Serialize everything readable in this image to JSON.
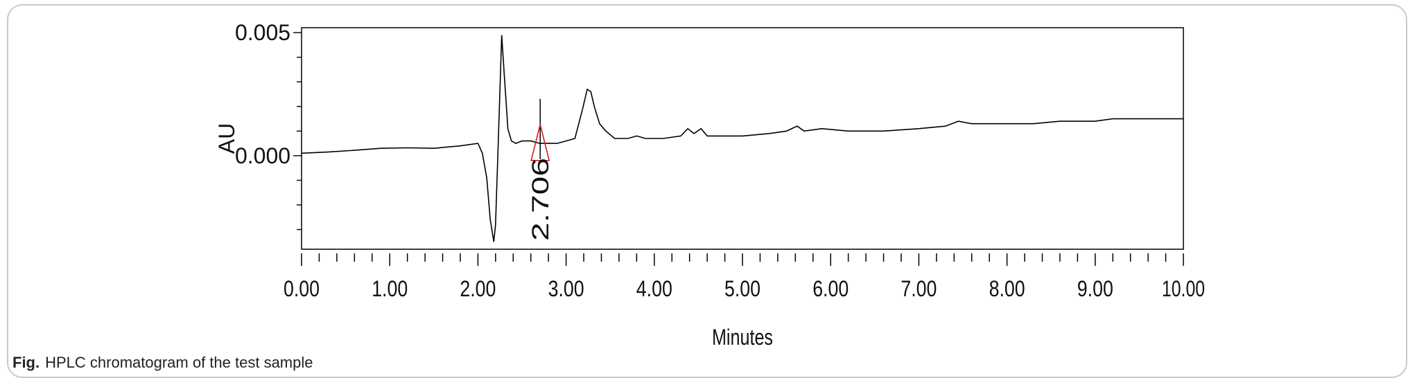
{
  "figure": {
    "caption_label": "Fig.",
    "caption_text": "HPLC chromatogram of the test sample"
  },
  "chart_data": {
    "type": "line",
    "title": "",
    "xlabel": "Minutes",
    "ylabel": "AU",
    "xlim": [
      0,
      10
    ],
    "ylim": [
      -0.0038,
      0.0052
    ],
    "x_ticks": [
      "0.00",
      "1.00",
      "2.00",
      "3.00",
      "4.00",
      "5.00",
      "6.00",
      "7.00",
      "8.00",
      "9.00",
      "10.00"
    ],
    "y_ticks": [
      "0.005",
      "0.000"
    ],
    "y_tick_values": [
      0.005,
      0.0
    ],
    "grid": false,
    "line_color": "#000000",
    "marker_color": "#d81b1b",
    "series": [
      {
        "x": [
          0.0,
          0.3,
          0.6,
          0.9,
          1.2,
          1.5,
          1.8,
          2.0,
          2.05,
          2.1,
          2.14,
          2.18,
          2.2,
          2.23,
          2.27,
          2.3,
          2.34,
          2.38,
          2.43,
          2.5,
          2.6,
          2.7,
          2.8,
          2.9,
          3.0,
          3.1,
          3.18,
          3.24,
          3.28,
          3.32,
          3.38,
          3.45,
          3.55,
          3.7,
          3.8,
          3.9,
          4.1,
          4.3,
          4.38,
          4.45,
          4.53,
          4.6,
          4.8,
          5.0,
          5.3,
          5.5,
          5.62,
          5.7,
          5.9,
          6.2,
          6.6,
          7.0,
          7.3,
          7.45,
          7.6,
          7.9,
          8.3,
          8.6,
          9.0,
          9.2,
          9.5,
          10.0
        ],
        "y": [
          0.0001,
          0.00015,
          0.00022,
          0.0003,
          0.00032,
          0.0003,
          0.0004,
          0.0005,
          0.0001,
          -0.0009,
          -0.0026,
          -0.0035,
          -0.0028,
          0.0005,
          0.0049,
          0.0032,
          0.0011,
          0.0006,
          0.0005,
          0.0006,
          0.0006,
          0.0005,
          0.0005,
          0.0005,
          0.0006,
          0.0007,
          0.0018,
          0.0027,
          0.0026,
          0.002,
          0.0013,
          0.001,
          0.0007,
          0.0007,
          0.0008,
          0.0007,
          0.0007,
          0.0008,
          0.0011,
          0.0009,
          0.0011,
          0.0008,
          0.0008,
          0.0008,
          0.0009,
          0.001,
          0.0012,
          0.001,
          0.0011,
          0.001,
          0.001,
          0.0011,
          0.0012,
          0.0014,
          0.0013,
          0.0013,
          0.0013,
          0.0014,
          0.0014,
          0.0015,
          0.0015,
          0.0015
        ]
      }
    ],
    "annotations": [
      {
        "label": "2.706",
        "x": 2.706,
        "y": 0.0002
      }
    ]
  }
}
